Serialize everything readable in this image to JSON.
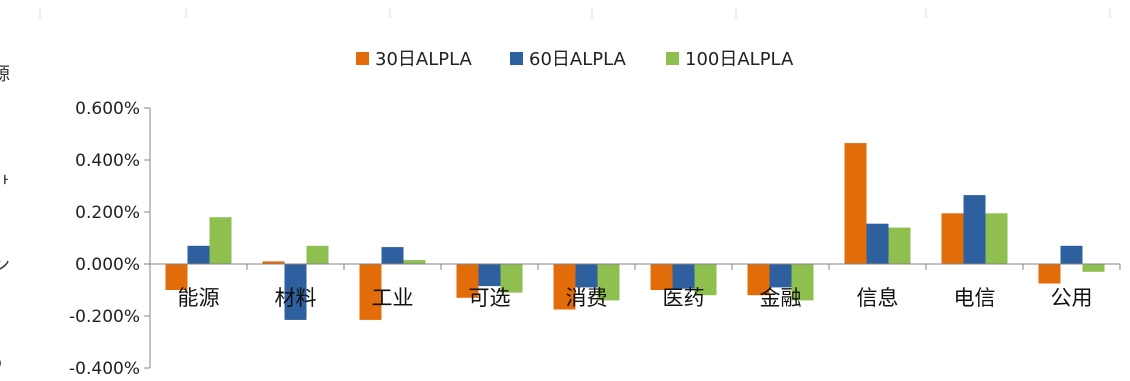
{
  "colors": {
    "series_1": "#e36c0a",
    "series_2": "#2e5f9e",
    "series_3": "#8ebf4f",
    "axis": "#868686",
    "text": "#222222"
  },
  "clipped_left_chars": [
    "源",
    ")",
    "ᅡ",
    ")",
    "ン",
    "²",
    "ɔ"
  ],
  "chart_data": {
    "type": "bar",
    "title": "",
    "xlabel": "",
    "ylabel": "",
    "categories": [
      "能源",
      "材料",
      "工业",
      "可选",
      "消费",
      "医药",
      "金融",
      "信息",
      "电信",
      "公用"
    ],
    "series": [
      {
        "name": "30日ALPLA",
        "values": [
          -0.1,
          0.01,
          -0.215,
          -0.13,
          -0.175,
          -0.1,
          -0.12,
          0.465,
          0.195,
          -0.075
        ]
      },
      {
        "name": "60日ALPLA",
        "values": [
          0.07,
          -0.215,
          0.065,
          -0.085,
          -0.09,
          -0.095,
          -0.09,
          0.155,
          0.265,
          0.07
        ]
      },
      {
        "name": "100日ALPLA",
        "values": [
          0.18,
          0.07,
          0.015,
          -0.11,
          -0.14,
          -0.12,
          -0.14,
          0.14,
          0.195,
          -0.03
        ]
      }
    ],
    "ylim": [
      -0.4,
      0.6
    ],
    "yticks": [
      0.6,
      0.4,
      0.2,
      0.0,
      -0.2,
      -0.4
    ],
    "ytick_labels": [
      "0.600%",
      "0.400%",
      "0.200%",
      "0.000%",
      "-0.200%",
      "-0.400%"
    ],
    "y_unit": "%",
    "grid": false,
    "legend": "top-center"
  }
}
